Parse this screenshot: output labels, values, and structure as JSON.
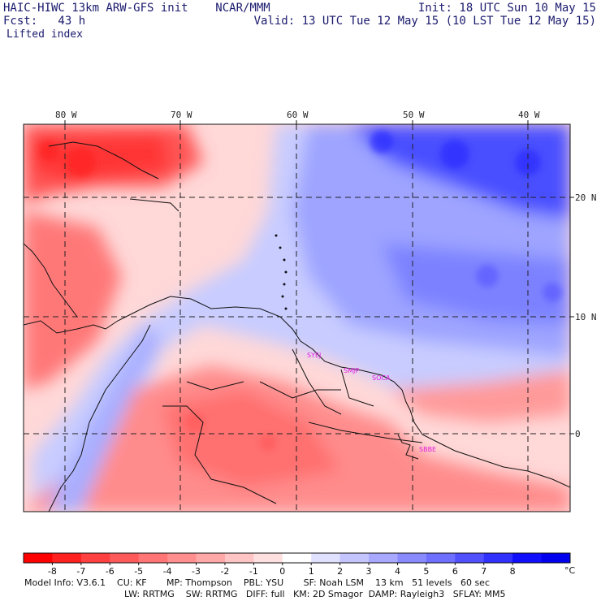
{
  "header": {
    "left_line1": "HAIC-HIWC 13km ARW-GFS init    NCAR/MMM",
    "left_line2": "Fcst:   43 h",
    "right_line1": "Init: 18 UTC Sun 10 May 15",
    "right_line2": "Valid: 13 UTC Tue 12 May 15 (10 LST Tue 12 May 15)",
    "field_name": "Lifted index"
  },
  "map": {
    "lon_labels": [
      "80 W",
      "70 W",
      "60 W",
      "50 W",
      "40 W"
    ],
    "lat_labels": [
      "20 N",
      "10 N",
      "0"
    ],
    "stations": [
      "SYEJ",
      "SMJP",
      "SOCA",
      "SBBE"
    ],
    "station_color": "#e020e0"
  },
  "colorbar": {
    "ticks": [
      "-8",
      "-7",
      "-6",
      "-5",
      "-4",
      "-3",
      "-2",
      "-1",
      "0",
      "1",
      "2",
      "3",
      "4",
      "5",
      "6",
      "7",
      "8"
    ],
    "unit": "°C",
    "colors": [
      "#ff0000",
      "#ff2020",
      "#ff4040",
      "#ff5a5a",
      "#ff7474",
      "#ff8e8e",
      "#ffa8a8",
      "#ffc4c4",
      "#ffe0e0",
      "#ffffff",
      "#e0e0ff",
      "#c4c4ff",
      "#a8a8ff",
      "#8a8aff",
      "#6e6eff",
      "#5050ff",
      "#3030ff",
      "#1010ff",
      "#0000ee"
    ]
  },
  "footer": {
    "line1": "Model Info: V3.6.1    CU: KF       MP: Thompson    PBL: YSU       SF: Noah LSM    13 km   51 levels   60 sec",
    "line2": "LW: RRTMG    SW: RRTMG   DIFF: full   KM: 2D Smagor  DAMP: Rayleigh3   SFLAY: MM5"
  }
}
